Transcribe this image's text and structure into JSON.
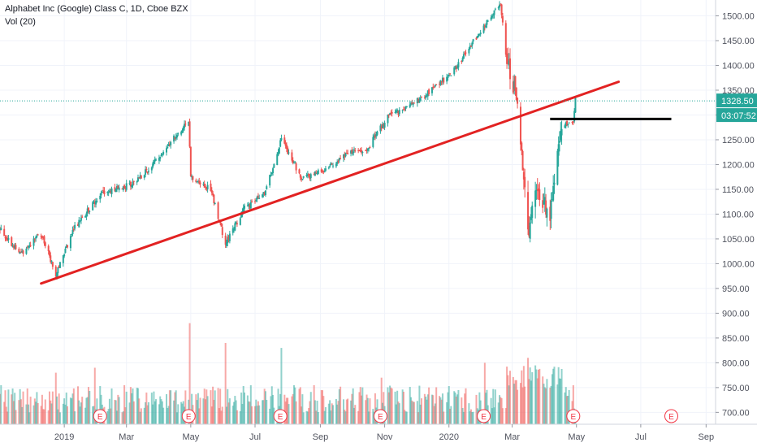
{
  "header": {
    "title": "Alphabet Inc (Google) Class C, 1D, Cboe BZX",
    "volume_label": "Vol (20)"
  },
  "price_axis": {
    "ticks": [
      "1500.00",
      "1450.00",
      "1400.00",
      "1350.00",
      "1300.00",
      "1250.00",
      "1200.00",
      "1150.00",
      "1100.00",
      "1050.00",
      "1000.00",
      "950.00",
      "900.00",
      "850.00",
      "800.00",
      "750.00",
      "700.00"
    ],
    "last_price": "1328.50",
    "countdown": "03:07:52",
    "accent": "#26a69a"
  },
  "time_axis": {
    "ticks": [
      "2019",
      "Mar",
      "May",
      "Jul",
      "Sep",
      "Nov",
      "2020",
      "Mar",
      "May",
      "Jul",
      "Sep"
    ]
  },
  "earnings": {
    "label": "E",
    "dates": [
      "2019-02-04",
      "2019-04-29",
      "2019-07-25",
      "2019-10-28",
      "2020-02-03",
      "2020-04-28",
      "2020-07-30"
    ]
  },
  "colors": {
    "up": "#26a69a",
    "down": "#ef5350",
    "trendline": "#e22222",
    "level": "#000000"
  },
  "chart_data": {
    "type": "candlestick",
    "symbol": "Alphabet Inc (Google) Class C",
    "interval": "1D",
    "ylim": [
      676,
      1532
    ],
    "x_range": [
      "2018-11-01",
      "2020-09-10"
    ],
    "last_price": 1328.5,
    "series": [
      {
        "name": "",
        "type": "candlestick",
        "anchors": [
          [
            "2018-11-01",
            1070
          ],
          [
            "2018-11-20",
            1020
          ],
          [
            "2018-12-10",
            1060
          ],
          [
            "2018-12-24",
            980
          ],
          [
            "2019-01-10",
            1070
          ],
          [
            "2019-02-04",
            1140
          ],
          [
            "2019-03-05",
            1160
          ],
          [
            "2019-03-22",
            1190
          ],
          [
            "2019-04-29",
            1290
          ],
          [
            "2019-05-01",
            1175
          ],
          [
            "2019-05-20",
            1150
          ],
          [
            "2019-06-03",
            1040
          ],
          [
            "2019-06-20",
            1110
          ],
          [
            "2019-07-10",
            1140
          ],
          [
            "2019-07-26",
            1250
          ],
          [
            "2019-08-15",
            1170
          ],
          [
            "2019-09-05",
            1190
          ],
          [
            "2019-09-25",
            1220
          ],
          [
            "2019-10-15",
            1230
          ],
          [
            "2019-11-05",
            1300
          ],
          [
            "2019-11-20",
            1310
          ],
          [
            "2019-12-10",
            1340
          ],
          [
            "2020-01-06",
            1390
          ],
          [
            "2020-01-28",
            1460
          ],
          [
            "2020-02-19",
            1525
          ],
          [
            "2020-02-24",
            1420
          ],
          [
            "2020-03-05",
            1340
          ],
          [
            "2020-03-16",
            1060
          ],
          [
            "2020-03-25",
            1150
          ],
          [
            "2020-04-06",
            1100
          ],
          [
            "2020-04-17",
            1280
          ],
          [
            "2020-04-28",
            1290
          ],
          [
            "2020-04-30",
            1330
          ]
        ]
      },
      {
        "name": "",
        "type": "volume",
        "spikes": [
          [
            "2018-12-24",
            780
          ],
          [
            "2019-01-30",
            790
          ],
          [
            "2019-04-30",
            880
          ],
          [
            "2019-06-03",
            840
          ],
          [
            "2019-07-26",
            830
          ],
          [
            "2019-10-29",
            770
          ],
          [
            "2020-02-04",
            800
          ],
          [
            "2020-03-16",
            810
          ]
        ]
      }
    ],
    "annotations": [
      {
        "type": "trendline",
        "from": [
          "2018-12-10",
          960
        ],
        "to": [
          "2020-06-10",
          1367
        ]
      },
      {
        "type": "horizontal",
        "from": "2020-04-06",
        "to": "2020-07-30",
        "value": 1292
      }
    ]
  }
}
